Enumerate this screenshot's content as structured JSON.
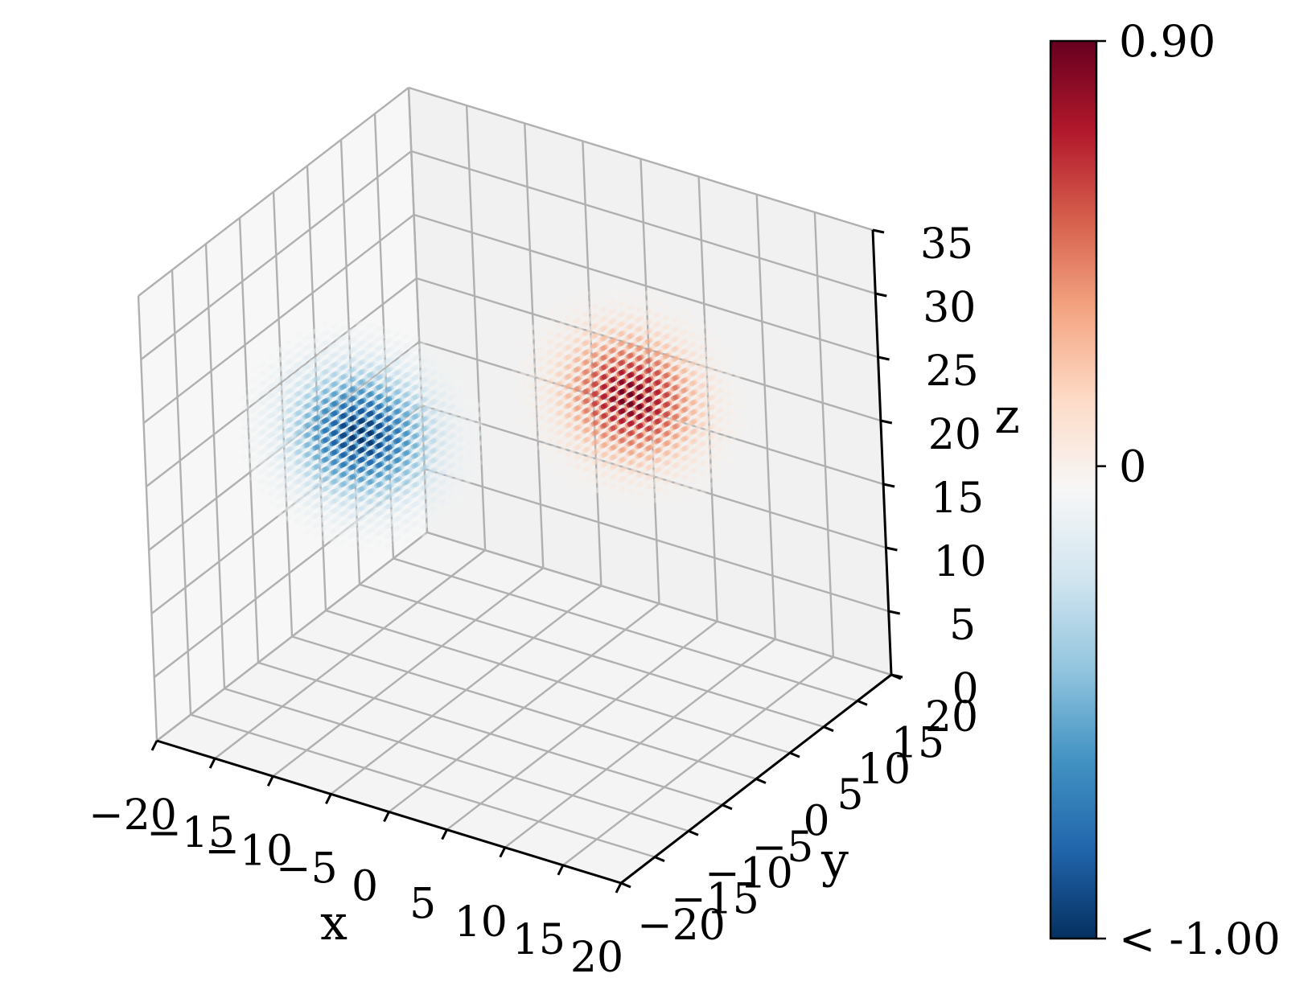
{
  "chart_data": {
    "type": "scatter",
    "projection": "3d",
    "title": "",
    "xlabel": "x",
    "ylabel": "y",
    "zlabel": "z",
    "xlim": [
      -20,
      20
    ],
    "ylim": [
      -20,
      20
    ],
    "zlim": [
      0,
      35
    ],
    "x_ticks": [
      "−20",
      "−15",
      "−10",
      "−5",
      "0",
      "5",
      "10",
      "15",
      "20"
    ],
    "y_ticks": [
      "−20",
      "−15",
      "−10",
      "−5",
      "0",
      "5",
      "10",
      "15",
      "20"
    ],
    "z_ticks": [
      "0",
      "5",
      "10",
      "15",
      "20",
      "25",
      "30",
      "35"
    ],
    "grid": true,
    "colormap": "RdBu_r",
    "colorbar": {
      "min": -1.0,
      "max": 0.9,
      "tick_labels": [
        "0.90",
        "0",
        "< -1.00"
      ],
      "tick_values": [
        0.9,
        0,
        -1.0
      ],
      "colors": [
        "#053061",
        "#2166ac",
        "#4393c3",
        "#92c5de",
        "#d1e5f0",
        "#f7f7f7",
        "#fddbc7",
        "#f4a582",
        "#d6604d",
        "#b2182b",
        "#67001f"
      ]
    },
    "clusters": [
      {
        "center": [
          -12,
          -2,
          19
        ],
        "peak": -1.0,
        "spread": [
          3.5,
          3.5,
          3.0
        ]
      },
      {
        "center": [
          8,
          4,
          25
        ],
        "peak": 0.9,
        "spread": [
          3.5,
          3.0,
          3.0
        ]
      }
    ]
  }
}
